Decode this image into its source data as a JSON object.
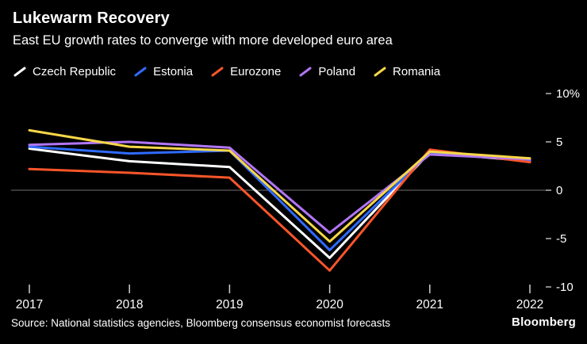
{
  "header": {
    "title": "Lukewarm Recovery",
    "subtitle": "East EU growth rates to converge with more developed euro area"
  },
  "chart_data": {
    "type": "line",
    "x": [
      "2017",
      "2018",
      "2019",
      "2020",
      "2021",
      "2022"
    ],
    "series": [
      {
        "name": "Czech Republic",
        "color": "#ffffff",
        "values": [
          4.3,
          3.0,
          2.4,
          -7.0,
          3.9,
          3.0
        ]
      },
      {
        "name": "Estonia",
        "color": "#2f6bff",
        "values": [
          4.5,
          3.8,
          4.1,
          -6.2,
          3.9,
          3.1
        ]
      },
      {
        "name": "Eurozone",
        "color": "#f9552a",
        "values": [
          2.2,
          1.8,
          1.3,
          -8.3,
          4.2,
          2.9
        ]
      },
      {
        "name": "Poland",
        "color": "#b176f5",
        "values": [
          4.7,
          5.0,
          4.4,
          -4.4,
          3.7,
          3.2
        ]
      },
      {
        "name": "Romania",
        "color": "#f7d748",
        "values": [
          6.2,
          4.5,
          4.1,
          -5.3,
          4.0,
          3.3
        ]
      }
    ],
    "ylabel_ticks": [
      "10%",
      "5",
      "0",
      "-5",
      "-10"
    ],
    "ytick_values": [
      10,
      5,
      0,
      -5,
      -10
    ],
    "ylim": [
      -10,
      10
    ],
    "zero_line": true,
    "grid": "off",
    "legend_position": "top",
    "title": "Lukewarm Recovery",
    "xlabel": "",
    "ylabel": "%"
  },
  "footer": {
    "source": "Source: National statistics agencies, Bloomberg consensus economist forecasts",
    "brand": "Bloomberg"
  }
}
